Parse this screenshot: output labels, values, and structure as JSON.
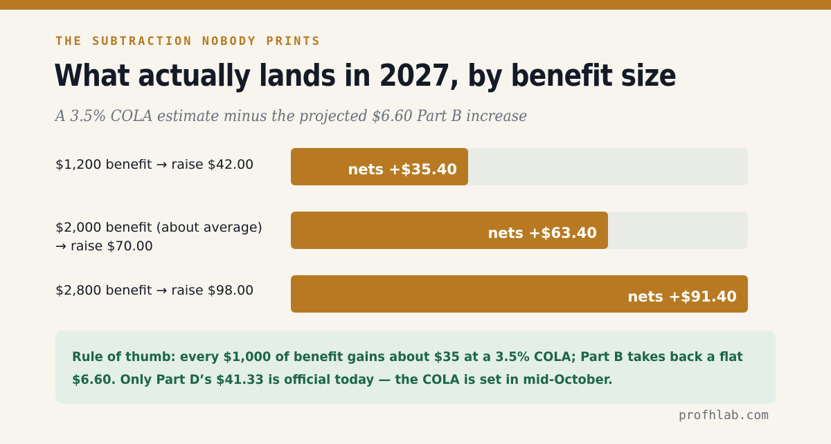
{
  "kicker": "THE SUBTRACTION NOBODY PRINTS",
  "title": "What actually lands in 2027, by benefit size",
  "subtitle": "A 3.5% COLA estimate minus the projected $6.60 Part B increase",
  "colors": {
    "accent": "#b77a22",
    "track": "#e9ebe6",
    "note_bg": "#e4efe8",
    "note_text": "#1d6647"
  },
  "chart_data": {
    "type": "bar",
    "orientation": "horizontal",
    "categories": [
      "$1,200 benefit → raise $42.00",
      "$2,000 benefit (about average) → raise $70.00",
      "$2,800 benefit → raise $98.00"
    ],
    "values": [
      35.4,
      63.4,
      91.4
    ],
    "data_labels": [
      "nets +$35.40",
      "nets +$63.40",
      "nets +$91.40"
    ],
    "xlim": [
      0,
      91.4
    ],
    "grid": false,
    "legend": "none"
  },
  "note": "Rule of thumb: every $1,000 of benefit gains about $35 at a 3.5% COLA; Part B takes back a flat $6.60. Only Part D’s $41.33 is official today — the COLA is set in mid-October.",
  "footer": "profhlab.com"
}
